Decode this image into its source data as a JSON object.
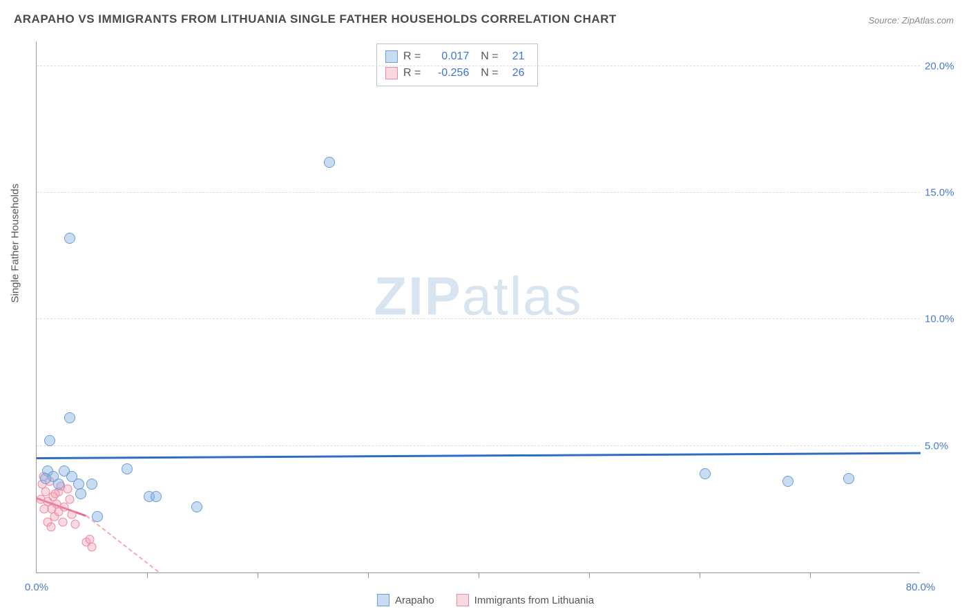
{
  "title": "ARAPAHO VS IMMIGRANTS FROM LITHUANIA SINGLE FATHER HOUSEHOLDS CORRELATION CHART",
  "source": "Source: ZipAtlas.com",
  "ylabel": "Single Father Households",
  "watermark_zip": "ZIP",
  "watermark_atlas": "atlas",
  "chart": {
    "type": "scatter",
    "xlim": [
      0,
      80
    ],
    "ylim": [
      0,
      21
    ],
    "x_ticks": [
      0.0,
      80.0
    ],
    "x_tick_labels": [
      "0.0%",
      "80.0%"
    ],
    "y_ticks": [
      5.0,
      10.0,
      15.0,
      20.0
    ],
    "y_tick_labels": [
      "5.0%",
      "10.0%",
      "15.0%",
      "20.0%"
    ],
    "x_minor_ticks": [
      10,
      20,
      30,
      40,
      50,
      60,
      70
    ],
    "grid_color": "#dcdcdc",
    "axis_color": "#999999",
    "background": "#ffffff",
    "series": [
      {
        "name": "Arapaho",
        "color_fill": "rgba(138,178,226,0.45)",
        "color_stroke": "#6a9ed8",
        "marker_size": 16,
        "R": "0.017",
        "N": "21",
        "trend": {
          "x1": 0,
          "y1": 4.5,
          "x2": 80,
          "y2": 4.7,
          "color": "#2e6cc4",
          "width": 2.5,
          "style": "solid"
        },
        "points": [
          [
            1.0,
            4.0
          ],
          [
            1.2,
            5.2
          ],
          [
            1.5,
            3.8
          ],
          [
            0.8,
            3.7
          ],
          [
            3.0,
            13.2
          ],
          [
            26.5,
            16.2
          ],
          [
            3.0,
            6.1
          ],
          [
            2.5,
            4.0
          ],
          [
            5.0,
            3.5
          ],
          [
            3.8,
            3.5
          ],
          [
            8.2,
            4.1
          ],
          [
            4.0,
            3.1
          ],
          [
            10.2,
            3.0
          ],
          [
            10.8,
            3.0
          ],
          [
            14.5,
            2.6
          ],
          [
            5.5,
            2.2
          ],
          [
            3.2,
            3.8
          ],
          [
            60.5,
            3.9
          ],
          [
            68.0,
            3.6
          ],
          [
            73.5,
            3.7
          ],
          [
            2.0,
            3.5
          ]
        ]
      },
      {
        "name": "Immigrants from Lithuania",
        "color_fill": "rgba(244,160,180,0.40)",
        "color_stroke": "#e88aa5",
        "marker_size": 13,
        "R": "-0.256",
        "N": "26",
        "trend_solid": {
          "x1": 0,
          "y1": 2.9,
          "x2": 4.5,
          "y2": 2.2,
          "color": "#e86a8e",
          "width": 2.5
        },
        "trend_dash": {
          "x1": 4.5,
          "y1": 2.2,
          "x2": 11,
          "y2": 0.0,
          "color": "#f3a8be",
          "width": 2
        },
        "points": [
          [
            0.5,
            3.5
          ],
          [
            0.8,
            3.2
          ],
          [
            1.0,
            2.8
          ],
          [
            1.2,
            3.6
          ],
          [
            1.4,
            2.5
          ],
          [
            1.5,
            3.0
          ],
          [
            1.6,
            2.2
          ],
          [
            1.8,
            2.7
          ],
          [
            2.0,
            3.2
          ],
          [
            2.0,
            2.4
          ],
          [
            2.2,
            3.4
          ],
          [
            2.4,
            2.0
          ],
          [
            2.5,
            2.6
          ],
          [
            2.8,
            3.3
          ],
          [
            3.0,
            2.9
          ],
          [
            1.0,
            2.0
          ],
          [
            1.3,
            1.8
          ],
          [
            0.7,
            2.5
          ],
          [
            3.2,
            2.3
          ],
          [
            3.5,
            1.9
          ],
          [
            0.4,
            2.9
          ],
          [
            1.7,
            3.1
          ],
          [
            4.5,
            1.2
          ],
          [
            5.0,
            1.0
          ],
          [
            4.8,
            1.3
          ],
          [
            0.6,
            3.8
          ]
        ]
      }
    ]
  },
  "legend_bottom": [
    {
      "swatch": "blue",
      "label": "Arapaho"
    },
    {
      "swatch": "pink",
      "label": "Immigrants from Lithuania"
    }
  ]
}
